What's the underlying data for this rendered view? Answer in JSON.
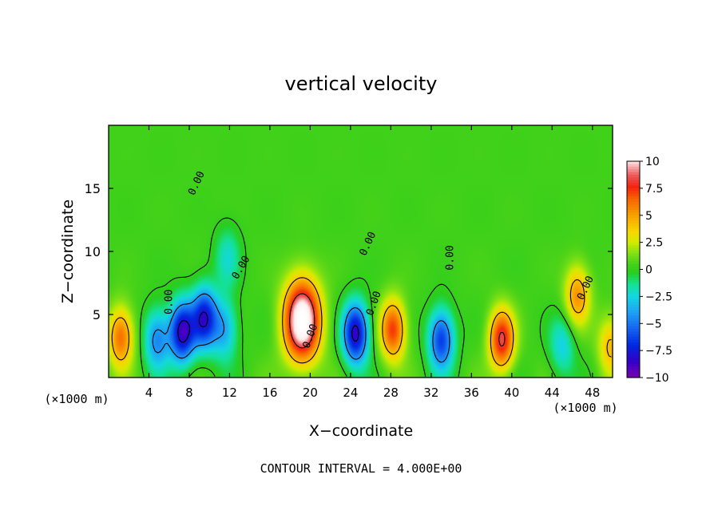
{
  "chart_data": {
    "type": "heatmap",
    "title": "vertical velocity",
    "xlabel": "X−coordinate",
    "ylabel": "Z−coordinate",
    "x_unit": "(×1000 m)",
    "x_unit_right": "(×1000 m)",
    "xlim": [
      0,
      50
    ],
    "ylim": [
      0,
      20
    ],
    "x_ticks": [
      4,
      8,
      12,
      16,
      20,
      24,
      28,
      32,
      36,
      40,
      44,
      48
    ],
    "x_tick_labels": [
      "4",
      "8",
      "12",
      "16",
      "20",
      "24",
      "28",
      "32",
      "36",
      "40",
      "44",
      "48"
    ],
    "y_ticks": [
      5,
      10,
      15
    ],
    "y_tick_labels": [
      "5",
      "10",
      "15"
    ],
    "colorbar": {
      "min": -10,
      "max": 10,
      "tick_values": [
        10,
        7.5,
        5,
        2.5,
        0,
        -2.5,
        -5,
        -7.5,
        -10
      ],
      "tick_labels": [
        "10",
        "7.5",
        "5",
        "2.5",
        "0",
        "−2.5",
        "−5",
        "−7.5",
        "−10"
      ],
      "colors": [
        "#7a00b0",
        "#2a00c0",
        "#0030e0",
        "#1a70f0",
        "#1ab0f0",
        "#10e0d0",
        "#10e090",
        "#20d020",
        "#50d020",
        "#90e010",
        "#d0e800",
        "#f8d800",
        "#f8a000",
        "#f86000",
        "#f82010",
        "#f06060",
        "#f8b8b8",
        "#ffffff"
      ]
    },
    "field_components": [
      {
        "x": 1.2,
        "z": 3.2,
        "value": 6
      },
      {
        "x": 4.8,
        "z": 3.0,
        "value": -5
      },
      {
        "x": 7.3,
        "z": 3.6,
        "value": -9
      },
      {
        "x": 9.5,
        "z": 4.7,
        "value": -8
      },
      {
        "x": 11.5,
        "z": 3.8,
        "value": -4
      },
      {
        "x": 11.8,
        "z": 9.5,
        "value": -2.5
      },
      {
        "x": 19.2,
        "z": 4.5,
        "value": 12
      },
      {
        "x": 24.5,
        "z": 3.5,
        "value": -9
      },
      {
        "x": 28.2,
        "z": 3.8,
        "value": 7
      },
      {
        "x": 33.0,
        "z": 3.0,
        "value": -7
      },
      {
        "x": 39.0,
        "z": 3.0,
        "value": 8
      },
      {
        "x": 46.5,
        "z": 6.5,
        "value": 5
      },
      {
        "x": 45.0,
        "z": 2.5,
        "value": -3
      },
      {
        "x": 49.8,
        "z": 2.5,
        "value": 4
      }
    ],
    "contour_labels": [
      "0.00",
      "0.00",
      "0.00",
      "0.00",
      "0.00",
      "0.00",
      "0.00",
      "0.00"
    ],
    "footer": "CONTOUR INTERVAL = 4.000E+00"
  }
}
